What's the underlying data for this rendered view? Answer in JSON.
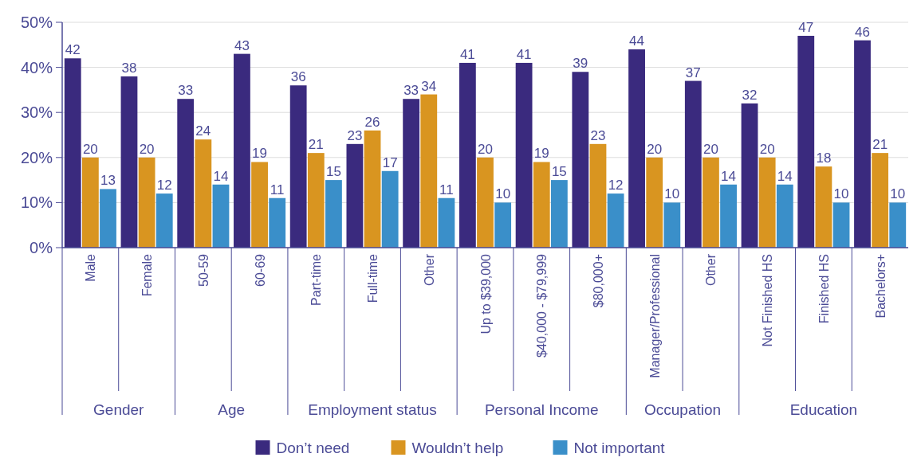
{
  "chart_data": {
    "type": "bar",
    "categories": [
      "Male",
      "Female",
      "50-59",
      "60-69",
      "Part-time",
      "Full-time",
      "Other",
      "Up to $39,000",
      "$40,000 - $79,999",
      "$80,000+",
      "Manager/Professional",
      "Other",
      "Not Finished HS",
      "Finished HS",
      "Bachelors+"
    ],
    "series": [
      {
        "name": "Don’t need",
        "color": "#3a2a7e",
        "values": [
          42,
          38,
          33,
          43,
          36,
          23,
          33,
          41,
          41,
          39,
          44,
          37,
          32,
          47,
          46
        ]
      },
      {
        "name": "Wouldn’t help",
        "color": "#d99520",
        "values": [
          20,
          20,
          24,
          19,
          21,
          26,
          34,
          20,
          19,
          23,
          20,
          20,
          20,
          18,
          21
        ]
      },
      {
        "name": "Not important",
        "color": "#3a8fc9",
        "values": [
          13,
          12,
          14,
          11,
          15,
          17,
          11,
          10,
          15,
          12,
          10,
          14,
          14,
          10,
          10
        ]
      }
    ],
    "ylim": [
      0,
      50
    ],
    "yticks": [
      {
        "value": 0,
        "label": "0%"
      },
      {
        "value": 10,
        "label": "10%"
      },
      {
        "value": 20,
        "label": "20%"
      },
      {
        "value": 30,
        "label": "30%"
      },
      {
        "value": 40,
        "label": "40%"
      },
      {
        "value": 50,
        "label": "50%"
      }
    ],
    "grid": "y",
    "data_labels": true,
    "legend": "bottom",
    "annotations": [
      "Gender",
      "Age",
      "Employment status",
      "Personal Income",
      "Occupation",
      "Education"
    ]
  }
}
